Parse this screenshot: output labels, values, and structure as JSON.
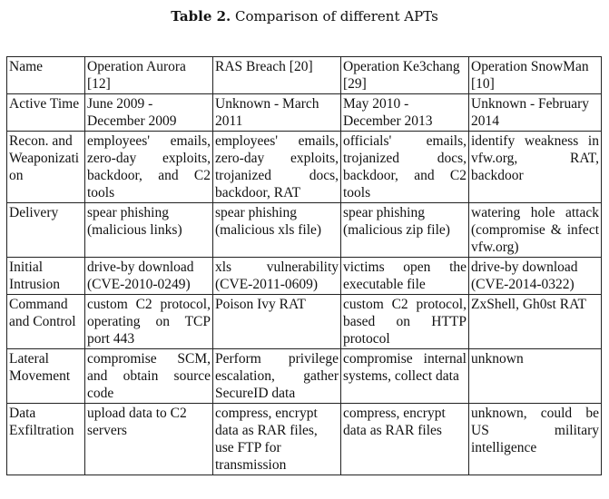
{
  "caption": {
    "label": "Table 2.",
    "text": "Comparison of different APTs"
  },
  "table": {
    "headers": [
      "Name",
      "Operation Aurora [12]",
      "RAS Breach [20]",
      "Operation Ke3chang [29]",
      "Operation SnowMan [10]"
    ],
    "rows": [
      [
        "Active Time",
        "June 2009 - December 2009",
        "Unknown - March 2011",
        "May 2010 - December 2013",
        "Unknown - February 2014"
      ],
      [
        "Recon. and Weaponization",
        "employees' emails, zero-day exploits, backdoor, and C2 tools",
        "employees' emails, zero-day exploits, trojanized docs, backdoor, RAT",
        "officials' emails, trojanized docs, backdoor, and C2 tools",
        "identify weakness in vfw.org, RAT, backdoor"
      ],
      [
        "Delivery",
        "spear phishing (malicious links)",
        "spear phishing (malicious xls file)",
        "spear phishing (malicious zip file)",
        "watering hole attack (compromise & infect vfw.org)"
      ],
      [
        "Initial Intrusion",
        "drive-by download (CVE-2010-0249)",
        "xls vulnerability (CVE-2011-0609)",
        "victims open the executable file",
        "drive-by download (CVE-2014-0322)"
      ],
      [
        "Command and Control",
        "custom C2 protocol, operating on TCP port 443",
        "Poison Ivy RAT",
        "custom C2 protocol, based on HTTP protocol",
        "ZxShell, Gh0st RAT"
      ],
      [
        "Lateral Movement",
        "compromise SCM, and obtain source code",
        "Perform privilege escalation, gather SecureID data",
        "compromise internal systems, collect data",
        "unknown"
      ],
      [
        "Data Exfiltration",
        "upload data to C2 servers",
        "compress, encrypt data as RAR files, use FTP for transmission",
        "compress, encrypt data as RAR files",
        "unknown, could be US military intelligence"
      ]
    ]
  }
}
